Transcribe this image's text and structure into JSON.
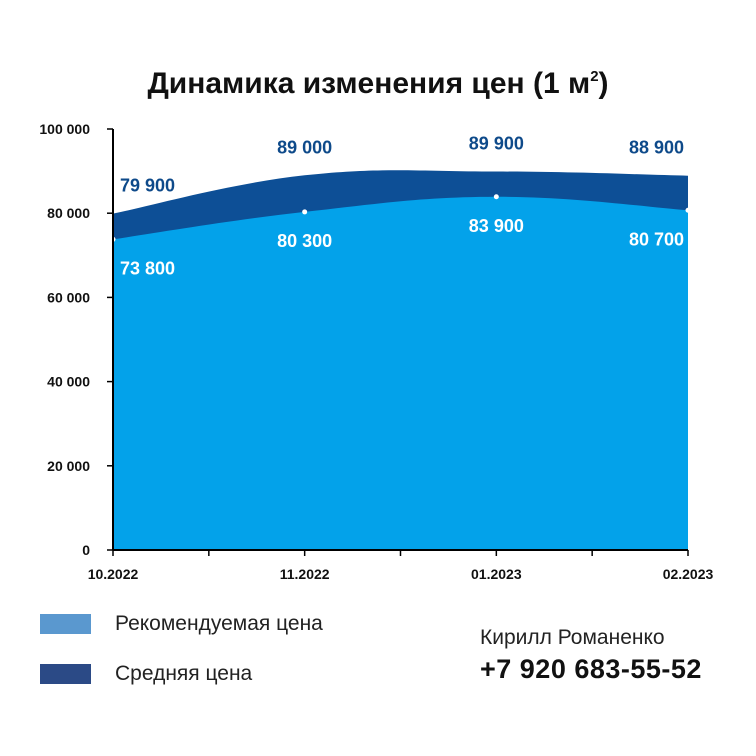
{
  "chart_data": {
    "type": "area",
    "title": "Динамика изменения цен (1 м",
    "title_sup": "2",
    "title_end": ")",
    "categories": [
      "10.2022",
      "11.2022",
      "01.2023",
      "02.2023"
    ],
    "ylim": [
      0,
      100000
    ],
    "y_ticks": [
      0,
      20000,
      40000,
      60000,
      80000,
      100000
    ],
    "y_tick_labels": [
      "0",
      "20 000",
      "40 000",
      "60 000",
      "80 000",
      "100 000"
    ],
    "grid": false,
    "legend_position": "bottom-left",
    "series": [
      {
        "name": "Средняя цена",
        "values": [
          79900,
          89000,
          89900,
          88900
        ],
        "labels": [
          "79 900",
          "89 000",
          "89 900",
          "88 900"
        ],
        "color": "#0d4f96"
      },
      {
        "name": "Рекомендуемая цена",
        "values": [
          73800,
          80300,
          83900,
          80700
        ],
        "labels": [
          "73 800",
          "80 300",
          "83 900",
          "80 700"
        ],
        "color": "#03a2ea"
      }
    ]
  },
  "legend": {
    "items": [
      {
        "label": "Рекомендуемая цена",
        "color": "#5a98cf"
      },
      {
        "label": "Средняя цена",
        "color": "#2b4a86"
      }
    ]
  },
  "contact": {
    "name": "Кирилл Романенко",
    "phone": "+7 920 683-55-52"
  }
}
